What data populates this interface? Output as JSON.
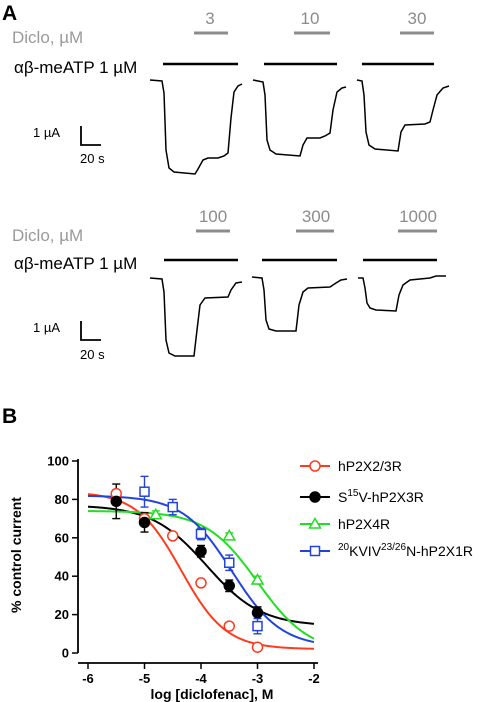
{
  "panel_a": {
    "label": "A",
    "rows": [
      {
        "diclo_label": "Diclo, µM",
        "agonist_label": "αβ-meATP 1 µM",
        "concentrations": [
          "3",
          "10",
          "30"
        ],
        "scale_current": "1 µA",
        "scale_time": "20 s"
      },
      {
        "diclo_label": "Diclo, µM",
        "agonist_label": "αβ-meATP 1 µM",
        "concentrations": [
          "100",
          "300",
          "1000"
        ],
        "scale_current": "1 µA",
        "scale_time": "20 s"
      }
    ]
  },
  "panel_b": {
    "label": "B"
  },
  "chart_data": {
    "type": "scatter",
    "xlabel": "log [diclofenac], M",
    "ylabel": "% control current",
    "xlim": [
      -6,
      -2
    ],
    "ylim": [
      0,
      100
    ],
    "xticks": [
      "-6",
      "-5",
      "-4",
      "-3",
      "-2"
    ],
    "yticks": [
      "0",
      "20",
      "40",
      "60",
      "80",
      "100"
    ],
    "legend_position": "top-right",
    "series": [
      {
        "name": "hP2X2/3R",
        "color": "#ff3b1f",
        "marker": "open-circle",
        "x": [
          -5.5,
          -5,
          -4.5,
          -4,
          -3.5,
          -3
        ],
        "y": [
          83,
          70,
          61,
          36.5,
          14,
          3
        ],
        "err": [
          2,
          3,
          1.5,
          1,
          1,
          1
        ],
        "fit": {
          "top": 84,
          "bottom": 2,
          "log_ic50": -4.35,
          "hill": 1.1
        }
      },
      {
        "name": "S15V-hP2X3R",
        "color": "#000000",
        "marker": "filled-circle",
        "x": [
          -5.5,
          -5,
          -4,
          -3.5,
          -3
        ],
        "y": [
          79,
          68,
          53,
          35,
          21
        ],
        "err": [
          9,
          5,
          3,
          3,
          3
        ],
        "fit": {
          "top": 77,
          "bottom": 14,
          "log_ic50": -3.9,
          "hill": 0.9
        }
      },
      {
        "name": "hP2X4R",
        "color": "#22dd22",
        "marker": "open-triangle",
        "x": [
          -4.8,
          -3.5,
          -3
        ],
        "y": [
          72,
          61,
          38
        ],
        "err": [
          2,
          1.5,
          2
        ],
        "fit": {
          "top": 74,
          "bottom": 0,
          "log_ic50": -3.0,
          "hill": 0.95
        }
      },
      {
        "name": "20KVIV23/26N-hP2X1R",
        "name_parts": {
          "sup1": "20",
          "base1": "KVIV",
          "sup2": "23/26",
          "base2": "N-hP2X1R"
        },
        "color": "#2244dd",
        "marker": "open-square",
        "x": [
          -5,
          -4.5,
          -4,
          -3.5,
          -3
        ],
        "y": [
          84,
          76,
          62,
          47,
          14
        ],
        "err": [
          8,
          4,
          3,
          4,
          4
        ],
        "fit": {
          "top": 82,
          "bottom": 3,
          "log_ic50": -3.45,
          "hill": 1.0
        }
      }
    ],
    "legend": [
      {
        "label": "hP2X2/3R"
      },
      {
        "label_parts": [
          "S",
          "15",
          "V-hP2X3R"
        ]
      },
      {
        "label": "hP2X4R"
      },
      {
        "label_parts": [
          "20",
          "KVIV",
          "23/26",
          "N-hP2X1R"
        ]
      }
    ]
  }
}
